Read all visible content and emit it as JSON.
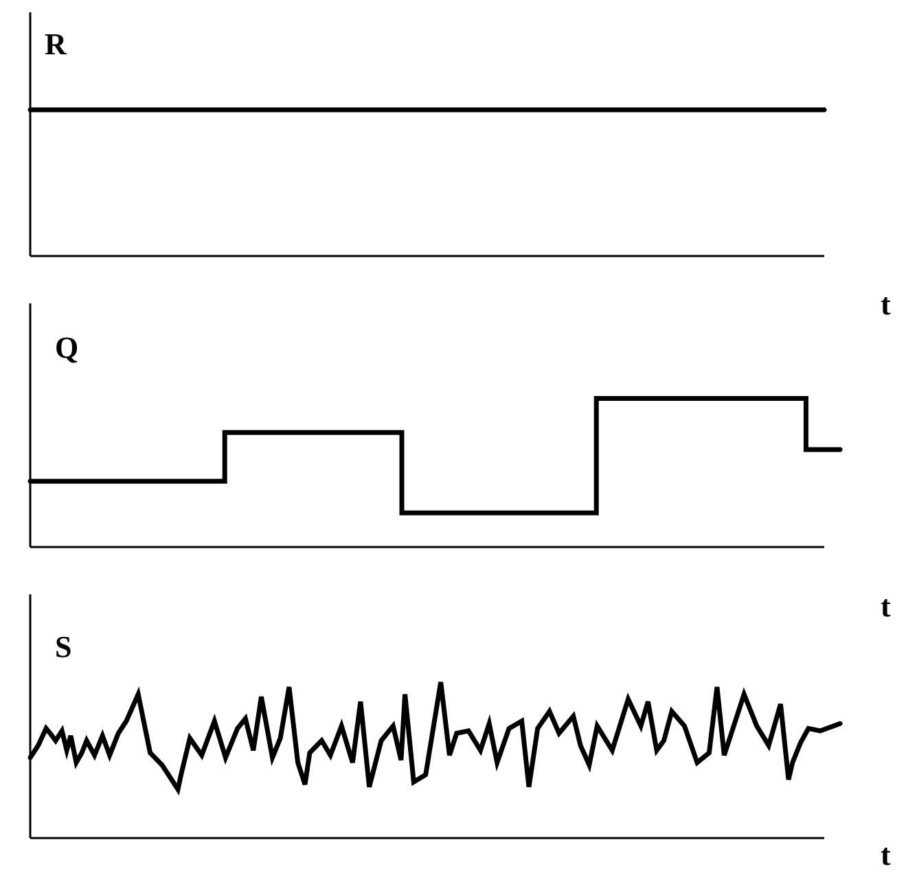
{
  "chart_data": [
    {
      "type": "line",
      "ylabel": "R",
      "xlabel": "t",
      "ylim": [
        0,
        10
      ],
      "series": [
        {
          "x": [
            0,
            100
          ],
          "values": [
            6,
            6
          ]
        }
      ]
    },
    {
      "type": "line",
      "ylabel": "Q",
      "xlabel": "t",
      "ylim": [
        0,
        10
      ],
      "series": [
        {
          "step": true,
          "x": [
            0,
            24.5,
            24.5,
            46.8,
            46.8,
            71.3,
            71.3,
            97.7,
            97.7,
            102
          ],
          "values": [
            2.7,
            2.7,
            4.7,
            4.7,
            1.4,
            1.4,
            6.1,
            6.1,
            4.0,
            4.0
          ]
        }
      ]
    },
    {
      "type": "line",
      "ylabel": "S",
      "xlabel": "t",
      "ylim": [
        0,
        10
      ],
      "series": [
        {
          "x": [
            0,
            1,
            2,
            2.5,
            3.2,
            4,
            4.6,
            5.1,
            5.8,
            6.5,
            7.1,
            8.1,
            9.1,
            10,
            11.1,
            12.1,
            13.6,
            15.1,
            16.6,
            18.6,
            19,
            20.1,
            21.6,
            23.2,
            24.6,
            26.1,
            27.1,
            28.1,
            29.1,
            30.5,
            31.5,
            32.6,
            33.7,
            34.6,
            35.2,
            36.7,
            37.8,
            39.2,
            40.6,
            41.6,
            42.7,
            44.2,
            45.7,
            46.7,
            47.2,
            48.3,
            49.8,
            51.7,
            52.8,
            53.7,
            55.2,
            56.7,
            57.8,
            58.8,
            60.3,
            61.9,
            62.8,
            63.9,
            65.4,
            66.6,
            68.4,
            69.3,
            70.4,
            71.4,
            73.3,
            75.3,
            76.9,
            77.8,
            78.9,
            79.8,
            80.8,
            82.4,
            84.0,
            85.5,
            86.5,
            87.4,
            88.4,
            89.9,
            91.5,
            93.0,
            94.5,
            95.5,
            96.0,
            97.0,
            98.0,
            99.5,
            102.0
          ],
          "values": [
            3.3,
            3.8,
            4.5,
            4.3,
            4.0,
            4.4,
            3.6,
            4.2,
            3.1,
            3.5,
            4.0,
            3.4,
            4.2,
            3.4,
            4.3,
            4.8,
            5.9,
            3.5,
            3.0,
            2.0,
            2.6,
            4.1,
            3.4,
            4.8,
            3.3,
            4.5,
            4.9,
            3.6,
            5.8,
            3.3,
            4.1,
            6.2,
            3.1,
            2.2,
            3.5,
            4.0,
            3.4,
            4.6,
            3.1,
            5.6,
            2.1,
            4.0,
            4.6,
            3.2,
            5.9,
            2.3,
            2.6,
            6.4,
            3.4,
            4.3,
            4.4,
            3.6,
            4.7,
            3.1,
            4.5,
            4.8,
            2.1,
            4.5,
            5.2,
            4.3,
            5.0,
            3.8,
            3.0,
            4.6,
            3.6,
            5.7,
            4.6,
            5.6,
            3.6,
            4.0,
            5.2,
            4.6,
            3.1,
            3.5,
            6.2,
            3.4,
            4.4,
            5.9,
            4.6,
            3.8,
            5.5,
            2.4,
            3.1,
            3.9,
            4.5,
            4.4,
            4.7
          ]
        }
      ]
    }
  ]
}
